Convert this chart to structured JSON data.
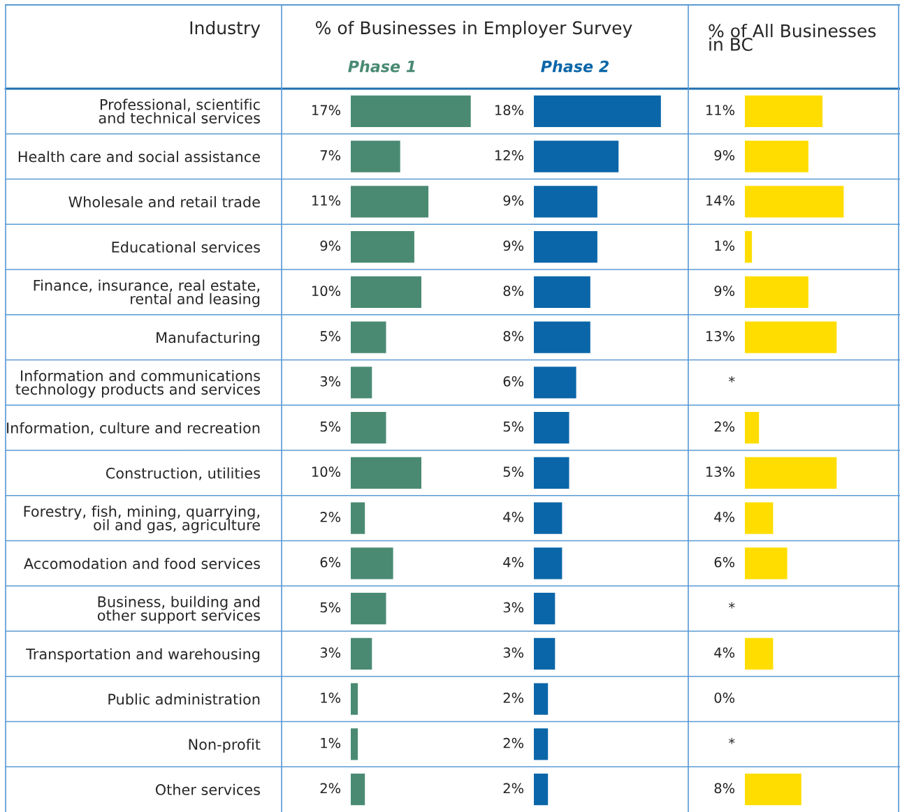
{
  "chart_data": [
    {
      "type": "bar",
      "orientation": "horizontal",
      "ylabel": "Industry",
      "annotations": [
        "% of Businesses in Employer Survey"
      ],
      "title": "Phase 1",
      "color": "#4a8a73",
      "categories": [
        "Professional, scientific\nand technical services",
        "Health care and social assistance",
        "Wholesale and retail trade",
        "Educational services",
        "Finance, insurance, real estate,\nrental and leasing",
        "Manufacturing",
        "Information and communications\ntechnology products and services",
        "Information, culture and recreation",
        "Construction, utilities",
        "Forestry, fish, mining, quarrying,\noil and gas, agriculture",
        "Accomodation and food services",
        "Business, building and\nother support services",
        "Transportation and warehousing",
        "Public administration",
        "Non-profit",
        "Other services"
      ],
      "values": [
        17,
        7,
        11,
        9,
        10,
        5,
        3,
        5,
        10,
        2,
        6,
        5,
        3,
        1,
        1,
        2
      ],
      "value_labels": [
        "17%",
        "7%",
        "11%",
        "9%",
        "10%",
        "5%",
        "3%",
        "5%",
        "10%",
        "2%",
        "6%",
        "5%",
        "3%",
        "1%",
        "1%",
        "2%"
      ]
    },
    {
      "type": "bar",
      "orientation": "horizontal",
      "title": "Phase 2",
      "color": "#0a66a8",
      "tick_labels": false,
      "values": [
        18,
        12,
        9,
        9,
        8,
        8,
        6,
        5,
        5,
        4,
        4,
        3,
        3,
        2,
        2,
        2
      ],
      "value_labels": [
        "18%",
        "12%",
        "9%",
        "9%",
        "8%",
        "8%",
        "6%",
        "5%",
        "5%",
        "4%",
        "4%",
        "3%",
        "3%",
        "2%",
        "2%",
        "2%"
      ]
    },
    {
      "type": "bar",
      "orientation": "horizontal",
      "title": "% of All Businesses\nin BC",
      "color": "#ffdd00",
      "tick_labels": false,
      "values": [
        11,
        9,
        14,
        1,
        9,
        13,
        null,
        2,
        13,
        4,
        6,
        null,
        4,
        0,
        null,
        8
      ],
      "value_labels": [
        "11%",
        "9%",
        "14%",
        "1%",
        "9%",
        "13%",
        "*",
        "2%",
        "13%",
        "4%",
        "6%",
        "*",
        "4%",
        "0%",
        "*",
        "8%"
      ]
    }
  ]
}
